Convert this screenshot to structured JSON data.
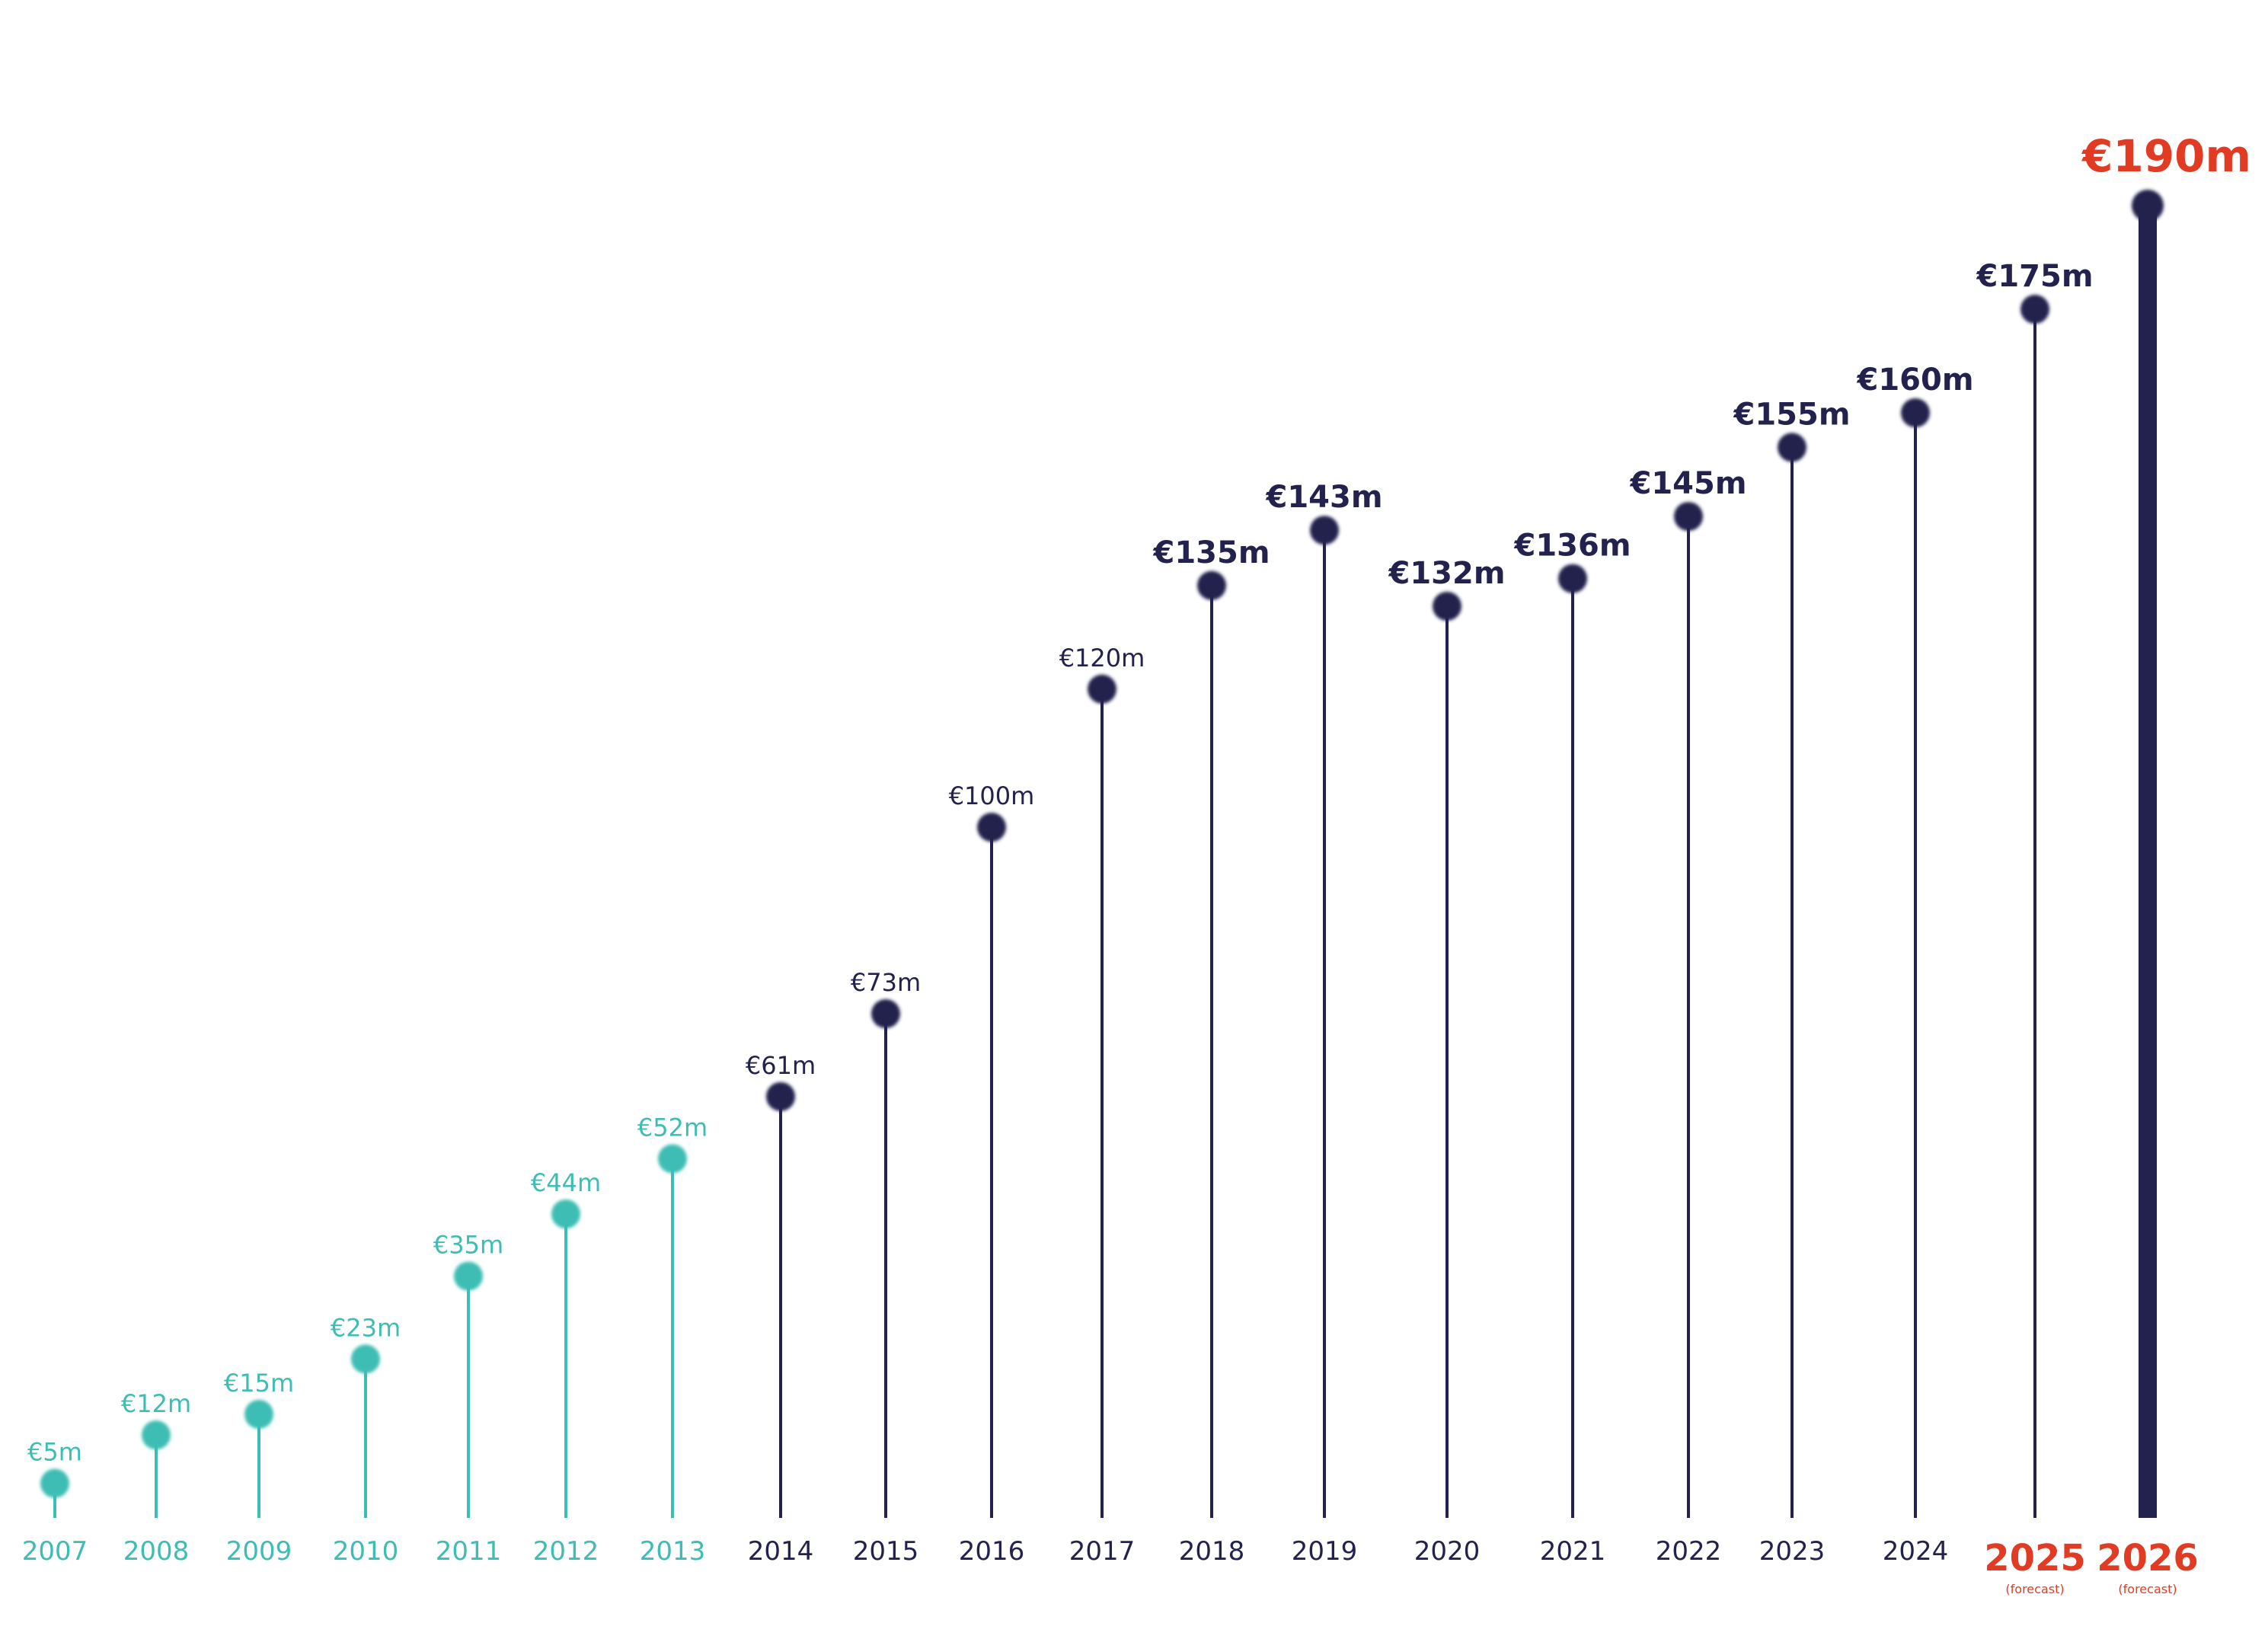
{
  "chart_data": {
    "type": "lollipop",
    "categories": [
      "2007",
      "2008",
      "2009",
      "2010",
      "2011",
      "2012",
      "2013",
      "2014",
      "2015",
      "2016",
      "2017",
      "2018",
      "2019",
      "2020",
      "2021",
      "2022",
      "2023",
      "2024",
      "2025",
      "2026"
    ],
    "values": [
      5,
      12,
      15,
      23,
      35,
      44,
      52,
      61,
      73,
      100,
      120,
      135,
      143,
      132,
      136,
      145,
      155,
      160,
      175,
      190
    ],
    "value_labels": [
      "€5m",
      "€12m",
      "€15m",
      "€23m",
      "€35m",
      "€44m",
      "€52m",
      "€61m",
      "€73m",
      "€100m",
      "€120m",
      "€135m",
      "€143m",
      "€132m",
      "€136m",
      "€145m",
      "€155m",
      "€160m",
      "€175m",
      "€190m"
    ],
    "notes": [
      "",
      "",
      "",
      "",
      "",
      "",
      "",
      "",
      "",
      "",
      "",
      "",
      "",
      "",
      "",
      "",
      "",
      "",
      "(forecast)",
      "(forecast)"
    ],
    "groups": [
      "early",
      "early",
      "early",
      "early",
      "early",
      "early",
      "early",
      "main",
      "main",
      "main",
      "main",
      "main",
      "main",
      "main",
      "main",
      "main",
      "main",
      "main",
      "forecast",
      "forecast"
    ],
    "highlight_category": "2026",
    "colors": {
      "early": "#3dbdb4",
      "main": "#23224e",
      "forecast": "#e23b24"
    },
    "ylim": [
      0,
      190
    ],
    "grid": false,
    "legend": "none",
    "title": "",
    "xlabel": "",
    "ylabel": ""
  }
}
